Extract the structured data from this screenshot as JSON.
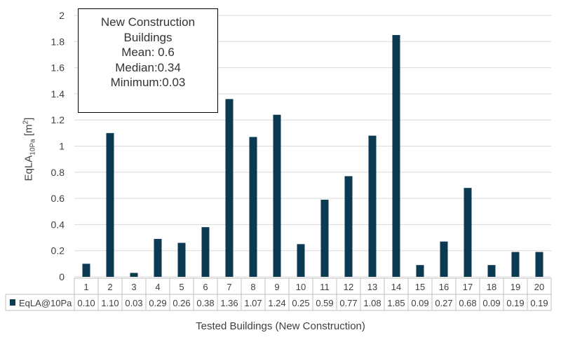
{
  "chart_data": {
    "type": "bar",
    "categories": [
      "1",
      "2",
      "3",
      "4",
      "5",
      "6",
      "7",
      "8",
      "9",
      "10",
      "11",
      "12",
      "13",
      "14",
      "15",
      "16",
      "17",
      "18",
      "19",
      "20"
    ],
    "series": [
      {
        "name": "EqLA@10Pa",
        "values": [
          0.1,
          1.1,
          0.03,
          0.29,
          0.26,
          0.38,
          1.36,
          1.07,
          1.24,
          0.25,
          0.59,
          0.77,
          1.08,
          1.85,
          0.09,
          0.27,
          0.68,
          0.09,
          0.19,
          0.19
        ],
        "value_labels": [
          "0.10",
          "1.10",
          "0.03",
          "0.29",
          "0.26",
          "0.38",
          "1.36",
          "1.07",
          "1.24",
          "0.25",
          "0.59",
          "0.77",
          "1.08",
          "1.85",
          "0.09",
          "0.27",
          "0.68",
          "0.09",
          "0.19",
          "0.19"
        ],
        "color": "#0b3a52"
      }
    ],
    "xlabel": "Tested Buildings (New Construction)",
    "ylabel": {
      "main": "EqLA",
      "sub": "10Pa",
      "unit_open": " [m",
      "unit_sup": "2",
      "unit_close": "]"
    },
    "ylim": [
      0,
      2
    ],
    "yticks": [
      "0",
      "0.2",
      "0.4",
      "0.6",
      "0.8",
      "1",
      "1.2",
      "1.4",
      "1.6",
      "1.8",
      "2"
    ],
    "grid": true,
    "legend": "data-table",
    "annotation": [
      "New Construction",
      "Buildings",
      "Mean: 0.6",
      "Median:0.34",
      "Minimum:0.03"
    ]
  },
  "colors": {
    "bar": "#0b3a52",
    "grid": "#d9d9d9",
    "table_border": "#bfbfbf",
    "text": "#404040"
  }
}
